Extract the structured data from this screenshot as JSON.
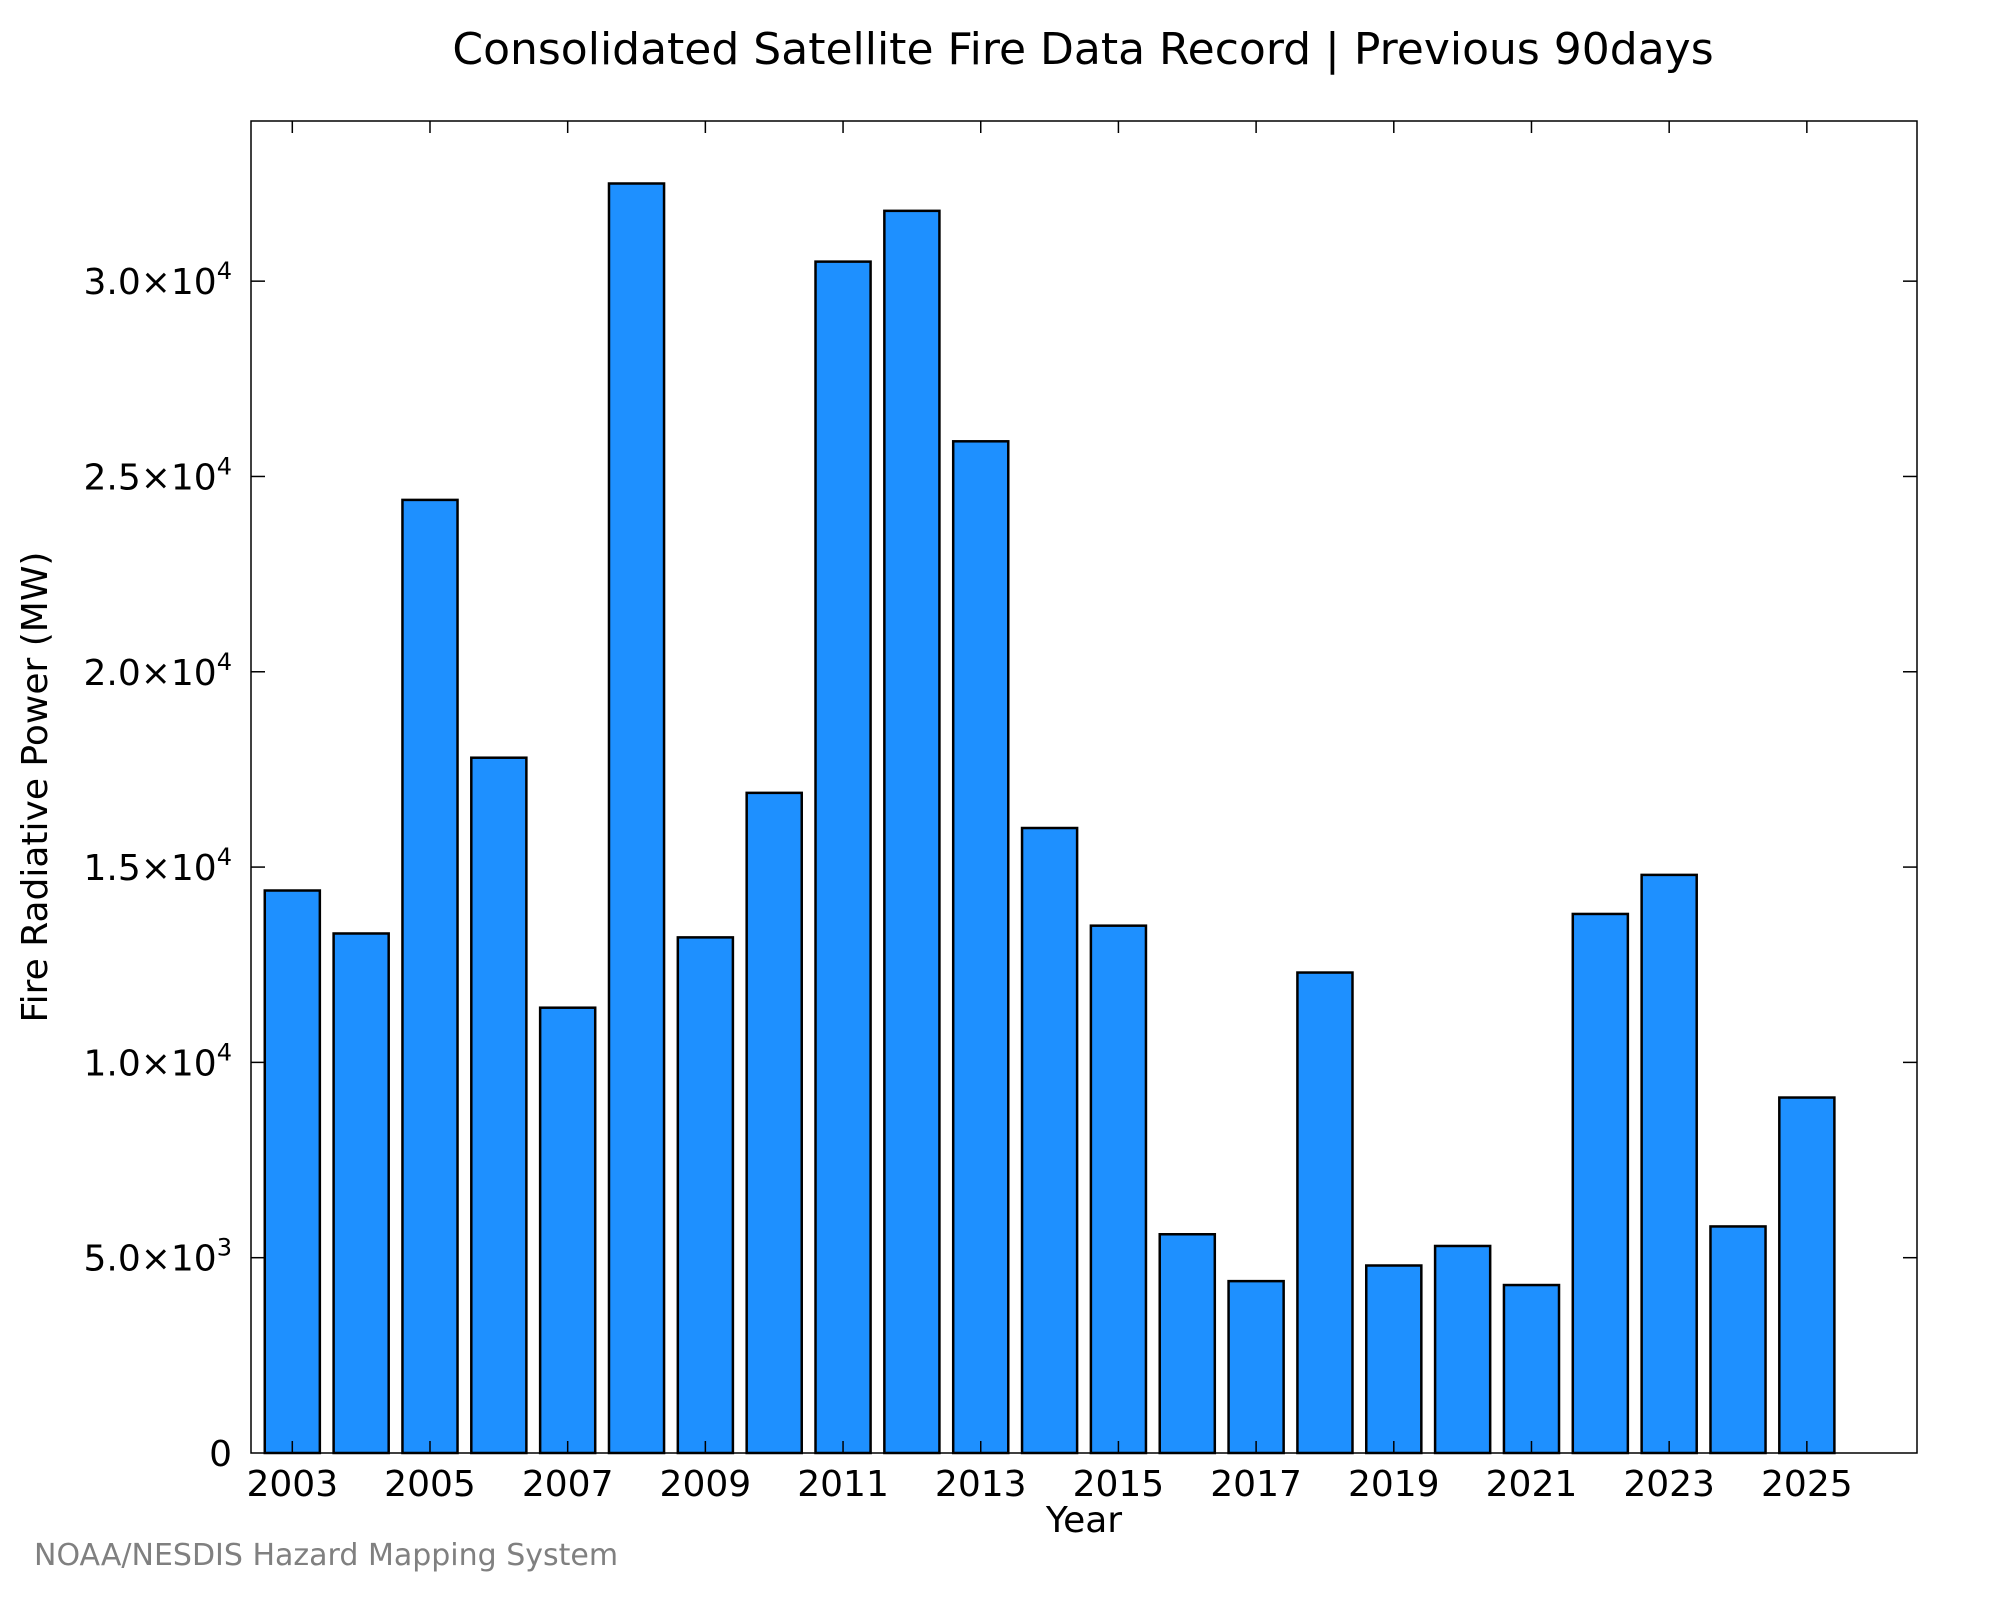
{
  "chart_data": {
    "type": "bar",
    "title": "Consolidated Satellite Fire Data Record | Previous 90days",
    "xlabel": "Year",
    "ylabel": "Fire Radiative Power (MW)",
    "categories": [
      "2003",
      "2004",
      "2005",
      "2006",
      "2007",
      "2008",
      "2009",
      "2010",
      "2011",
      "2012",
      "2013",
      "2014",
      "2015",
      "2016",
      "2017",
      "2018",
      "2019",
      "2020",
      "2021",
      "2022",
      "2023",
      "2024",
      "2025"
    ],
    "values": [
      14400,
      13300,
      24400,
      17800,
      11400,
      32500,
      13200,
      16900,
      30500,
      31800,
      25900,
      16000,
      13500,
      5600,
      4400,
      12300,
      4800,
      5300,
      4300,
      13800,
      14800,
      5800,
      9100
    ],
    "x_tick_labels": [
      "2003",
      "2005",
      "2007",
      "2009",
      "2011",
      "2013",
      "2015",
      "2017",
      "2019",
      "2021",
      "2023",
      "2025"
    ],
    "y_ticks": [
      {
        "value": 0,
        "mantissa": "0",
        "exponent": ""
      },
      {
        "value": 5000,
        "mantissa": "5.0×10",
        "exponent": "3"
      },
      {
        "value": 10000,
        "mantissa": "1.0×10",
        "exponent": "4"
      },
      {
        "value": 15000,
        "mantissa": "1.5×10",
        "exponent": "4"
      },
      {
        "value": 20000,
        "mantissa": "2.0×10",
        "exponent": "4"
      },
      {
        "value": 25000,
        "mantissa": "2.5×10",
        "exponent": "4"
      },
      {
        "value": 30000,
        "mantissa": "3.0×10",
        "exponent": "4"
      }
    ],
    "ylim": [
      0,
      34100
    ],
    "xlim": [
      2002.4,
      2026.6
    ],
    "bar_color": "#1e90ff",
    "bar_edge_color": "#000000",
    "grid": false,
    "legend": "none"
  },
  "credit": "NOAA/NESDIS Hazard Mapping System"
}
